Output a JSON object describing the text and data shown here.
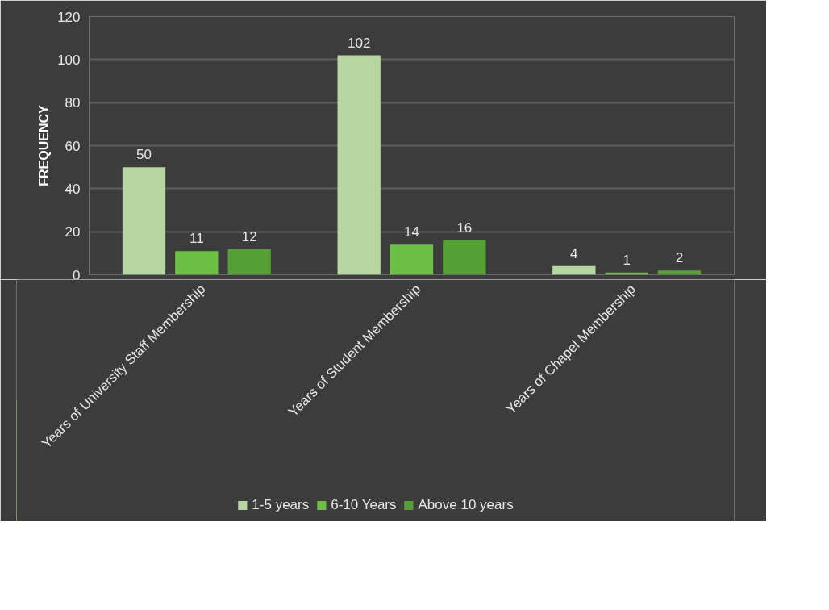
{
  "chart_data": {
    "type": "bar",
    "ylabel": "FREQUENCY",
    "categories": [
      "Years of University Staff Membership",
      "Years of Student Membership",
      "Years of Chapel Membership"
    ],
    "series": [
      {
        "name": "1-5 years",
        "color": "#b5d6a0",
        "values": [
          50,
          102,
          4
        ]
      },
      {
        "name": "6-10 Years",
        "color": "#6cbf45",
        "values": [
          11,
          14,
          1
        ]
      },
      {
        "name": "Above 10 years",
        "color": "#55a035",
        "values": [
          12,
          16,
          2
        ]
      }
    ],
    "ylim": [
      0,
      120
    ],
    "yticks": [
      0,
      20,
      40,
      60,
      80,
      100,
      120
    ],
    "grid": "y",
    "legend": "bottom",
    "data_labels": true
  }
}
